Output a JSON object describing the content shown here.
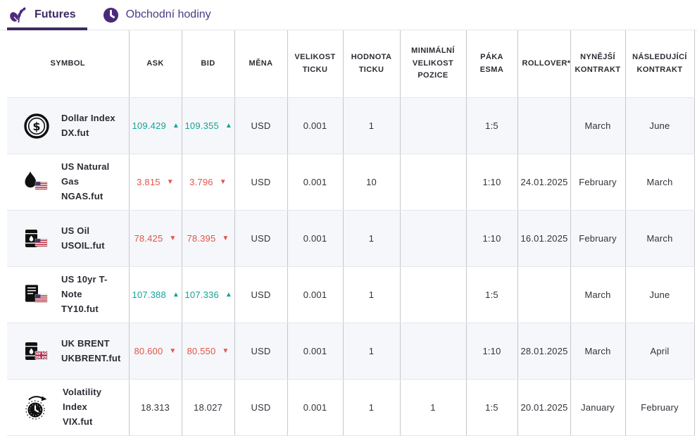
{
  "tabs": [
    {
      "label": "Futures",
      "icon": "wheat-icon",
      "active": true
    },
    {
      "label": "Obchodní hodiny",
      "icon": "clock-icon",
      "active": false
    }
  ],
  "glyphs": {
    "up": "▲",
    "down": "▼"
  },
  "colors": {
    "accent_purple": "#3d2b63",
    "tab_icon_purple": "#4b2a7b",
    "price_up": "#14a296",
    "price_down": "#e2544a",
    "row_alt_background": "#f6f7fa"
  },
  "table": {
    "columns": [
      {
        "id": "symbol",
        "label": "SYMBOL"
      },
      {
        "id": "ask",
        "label": "ASK"
      },
      {
        "id": "bid",
        "label": "BID"
      },
      {
        "id": "mena",
        "label": "MĚNA"
      },
      {
        "id": "velikost_ticku",
        "label": "VELIKOST TICKU"
      },
      {
        "id": "hodnota_ticku",
        "label": "HODNOTA TICKU"
      },
      {
        "id": "min_velikost_pozice",
        "label": "MINIMÁLNÍ VELIKOST POZICE"
      },
      {
        "id": "paka_esma",
        "label": "PÁKA ESMA"
      },
      {
        "id": "rollover",
        "label": "ROLLOVER*"
      },
      {
        "id": "nynejsi_kontrakt",
        "label": "NYNĚJŠÍ KONTRAKT"
      },
      {
        "id": "nasledujici_kontrakt",
        "label": "NÁSLEDUJÍCÍ KONTRAKT"
      }
    ],
    "rows": [
      {
        "icon": "dollar-coin-icon",
        "name": "Dollar Index",
        "ticker": "DX.fut",
        "ask": {
          "value": "109.429",
          "direction": "up"
        },
        "bid": {
          "value": "109.355",
          "direction": "up"
        },
        "mena": "USD",
        "velikost_ticku": "0.001",
        "hodnota_ticku": "1",
        "min_velikost_pozice": "",
        "paka_esma": "1:5",
        "rollover": "",
        "nynejsi_kontrakt": "March",
        "nasledujici_kontrakt": "June"
      },
      {
        "icon": "flame-us-icon",
        "name": "US Natural Gas",
        "ticker": "NGAS.fut",
        "ask": {
          "value": "3.815",
          "direction": "down"
        },
        "bid": {
          "value": "3.796",
          "direction": "down"
        },
        "mena": "USD",
        "velikost_ticku": "0.001",
        "hodnota_ticku": "10",
        "min_velikost_pozice": "",
        "paka_esma": "1:10",
        "rollover": "24.01.2025",
        "nynejsi_kontrakt": "February",
        "nasledujici_kontrakt": "March"
      },
      {
        "icon": "barrel-us-icon",
        "name": "US Oil",
        "ticker": "USOIL.fut",
        "ask": {
          "value": "78.425",
          "direction": "down"
        },
        "bid": {
          "value": "78.395",
          "direction": "down"
        },
        "mena": "USD",
        "velikost_ticku": "0.001",
        "hodnota_ticku": "1",
        "min_velikost_pozice": "",
        "paka_esma": "1:10",
        "rollover": "16.01.2025",
        "nynejsi_kontrakt": "February",
        "nasledujici_kontrakt": "March"
      },
      {
        "icon": "note-us-icon",
        "name": "US 10yr T-Note",
        "ticker": "TY10.fut",
        "ask": {
          "value": "107.388",
          "direction": "up"
        },
        "bid": {
          "value": "107.336",
          "direction": "up"
        },
        "mena": "USD",
        "velikost_ticku": "0.001",
        "hodnota_ticku": "1",
        "min_velikost_pozice": "",
        "paka_esma": "1:5",
        "rollover": "",
        "nynejsi_kontrakt": "March",
        "nasledujici_kontrakt": "June"
      },
      {
        "icon": "barrel-uk-icon",
        "name": "UK BRENT",
        "ticker": "UKBRENT.fut",
        "ask": {
          "value": "80.600",
          "direction": "down"
        },
        "bid": {
          "value": "80.550",
          "direction": "down"
        },
        "mena": "USD",
        "velikost_ticku": "0.001",
        "hodnota_ticku": "1",
        "min_velikost_pozice": "",
        "paka_esma": "1:10",
        "rollover": "28.01.2025",
        "nynejsi_kontrakt": "March",
        "nasledujici_kontrakt": "April"
      },
      {
        "icon": "gauge-icon",
        "name": "Volatility Index",
        "ticker": "VIX.fut",
        "ask": {
          "value": "18.313",
          "direction": "none"
        },
        "bid": {
          "value": "18.027",
          "direction": "none"
        },
        "mena": "USD",
        "velikost_ticku": "0.001",
        "hodnota_ticku": "1",
        "min_velikost_pozice": "1",
        "paka_esma": "1:5",
        "rollover": "20.01.2025",
        "nynejsi_kontrakt": "January",
        "nasledujici_kontrakt": "February"
      }
    ]
  }
}
